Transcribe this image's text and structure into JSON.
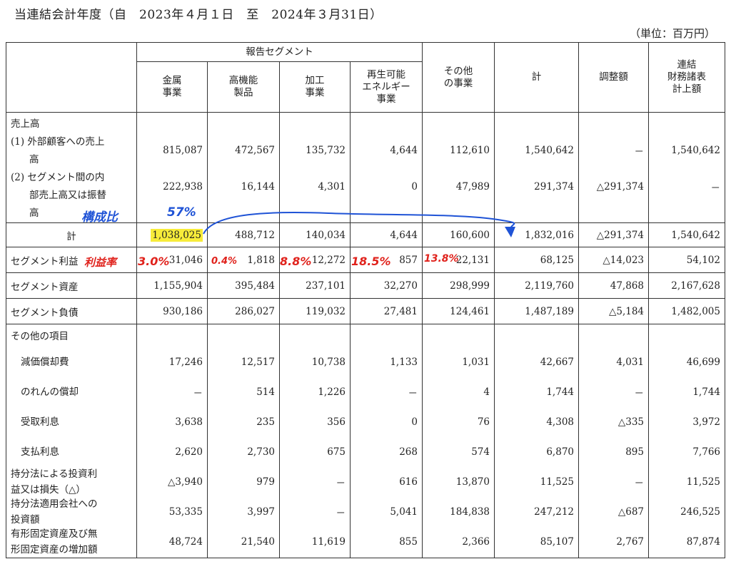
{
  "title": "当連結会計年度（自　2023年４月１日　至　2024年３月31日）",
  "unit": "（単位：百万円）",
  "header": {
    "reported_segments": "報告セグメント",
    "columns": [
      "金属\n事業",
      "高機能\n製品",
      "加工\n事業",
      "再生可能\nエネルギー\n事業",
      "その他\nの事業",
      "計",
      "調整額",
      "連結\n財務諸表\n計上額"
    ]
  },
  "sales": {
    "heading": "売上高",
    "ext_label_1": "(1)  外部顧客への売上",
    "ext_label_2": "高",
    "ext": [
      "815,087",
      "472,567",
      "135,732",
      "4,644",
      "112,610",
      "1,540,642",
      "－",
      "1,540,642"
    ],
    "int_label_1": "(2)  セグメント間の内",
    "int_label_2": "部売上高又は振替",
    "int_label_3": "高",
    "int": [
      "222,938",
      "16,144",
      "4,301",
      "0",
      "47,989",
      "291,374",
      "△291,374",
      "－"
    ]
  },
  "total": {
    "label": "計",
    "values": [
      "1,038,025",
      "488,712",
      "140,034",
      "4,644",
      "160,600",
      "1,832,016",
      "△291,374",
      "1,540,642"
    ]
  },
  "profit": {
    "label": "セグメント利益",
    "values": [
      "31,046",
      "1,818",
      "12,272",
      "857",
      "22,131",
      "68,125",
      "△14,023",
      "54,102"
    ]
  },
  "assets": {
    "label": "セグメント資産",
    "values": [
      "1,155,904",
      "395,484",
      "237,101",
      "32,270",
      "298,999",
      "2,119,760",
      "47,868",
      "2,167,628"
    ]
  },
  "liabilities": {
    "label": "セグメント負債",
    "values": [
      "930,186",
      "286,027",
      "119,032",
      "27,481",
      "124,461",
      "1,487,189",
      "△5,184",
      "1,482,005"
    ]
  },
  "other": {
    "heading": "その他の項目",
    "rows": [
      {
        "label_1": "減価償却費",
        "label_2": "",
        "values": [
          "17,246",
          "12,517",
          "10,738",
          "1,133",
          "1,031",
          "42,667",
          "4,031",
          "46,699"
        ]
      },
      {
        "label_1": "のれんの償却",
        "label_2": "",
        "values": [
          "－",
          "514",
          "1,226",
          "－",
          "4",
          "1,744",
          "－",
          "1,744"
        ]
      },
      {
        "label_1": "受取利息",
        "label_2": "",
        "values": [
          "3,638",
          "235",
          "356",
          "0",
          "76",
          "4,308",
          "△335",
          "3,972"
        ]
      },
      {
        "label_1": "支払利息",
        "label_2": "",
        "values": [
          "2,620",
          "2,730",
          "675",
          "268",
          "574",
          "6,870",
          "895",
          "7,766"
        ]
      },
      {
        "label_1": "持分法による投資利",
        "label_2": "益又は損失（△）",
        "values": [
          "△3,940",
          "979",
          "－",
          "616",
          "13,870",
          "11,525",
          "－",
          "11,525"
        ]
      },
      {
        "label_1": "持分法適用会社への",
        "label_2": "投資額",
        "values": [
          "53,335",
          "3,997",
          "－",
          "5,041",
          "184,838",
          "247,212",
          "△687",
          "246,525"
        ]
      },
      {
        "label_1": "有形固定資産及び無",
        "label_2": "形固定資産の増加額",
        "values": [
          "48,724",
          "21,540",
          "11,619",
          "855",
          "2,366",
          "85,107",
          "2,767",
          "87,874"
        ]
      }
    ]
  },
  "annotations": {
    "composition_label": "構成比",
    "composition_value": "57%",
    "margin_label": "利益率",
    "margins": [
      "3.0%",
      "0.4%",
      "8.8%",
      "18.5%",
      "13.8%"
    ],
    "colors": {
      "red": "#e0221c",
      "blue": "#1f53d6",
      "highlight": "#f7ec3a"
    }
  }
}
